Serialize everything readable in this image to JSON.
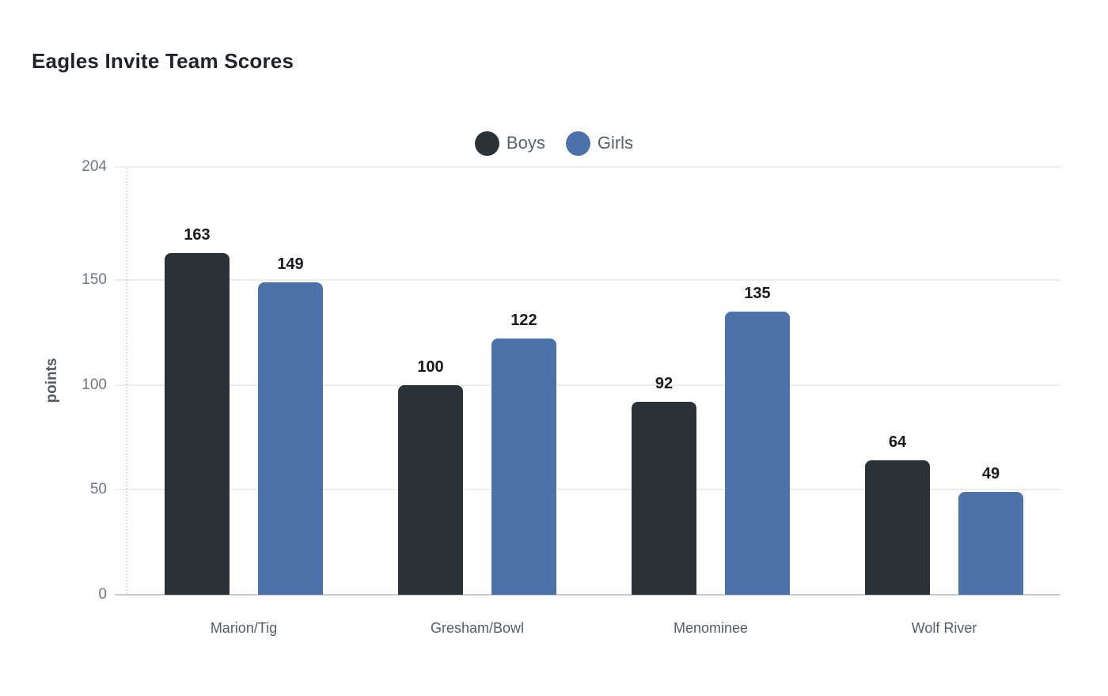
{
  "title": "Eagles Invite Team Scores",
  "colors": {
    "boys": "#2b3338",
    "girls": "#4c72ab",
    "gridline": "#ededed",
    "baseline": "#c9ccd2",
    "axis_dotted": "#dcdcdc",
    "title_text": "#1f2329",
    "tick_text": "#70777f",
    "category_text": "#555c65",
    "legend_text": "#5a626c",
    "axis_title_text": "#555a61",
    "value_label_text": "#17191d",
    "background": "#ffffff"
  },
  "legend": {
    "items": [
      {
        "label": "Boys",
        "color": "#2b3338"
      },
      {
        "label": "Girls",
        "color": "#4c72ab"
      }
    ]
  },
  "chart_data": {
    "type": "bar",
    "title": "Eagles Invite Team Scores",
    "categories": [
      "Marion/Tig",
      "Gresham/Bowl",
      "Menominee",
      "Wolf River"
    ],
    "series": [
      {
        "name": "Boys",
        "color": "#2b3338",
        "values": [
          163,
          100,
          92,
          64
        ]
      },
      {
        "name": "Girls",
        "color": "#4c72ab",
        "values": [
          149,
          122,
          135,
          49
        ]
      }
    ],
    "xlabel": "",
    "ylabel": "points",
    "ylim": [
      0,
      204
    ],
    "yticks": [
      0,
      50,
      100,
      150,
      204
    ],
    "grid": true,
    "legend_position": "top-center",
    "data_labels": true
  }
}
